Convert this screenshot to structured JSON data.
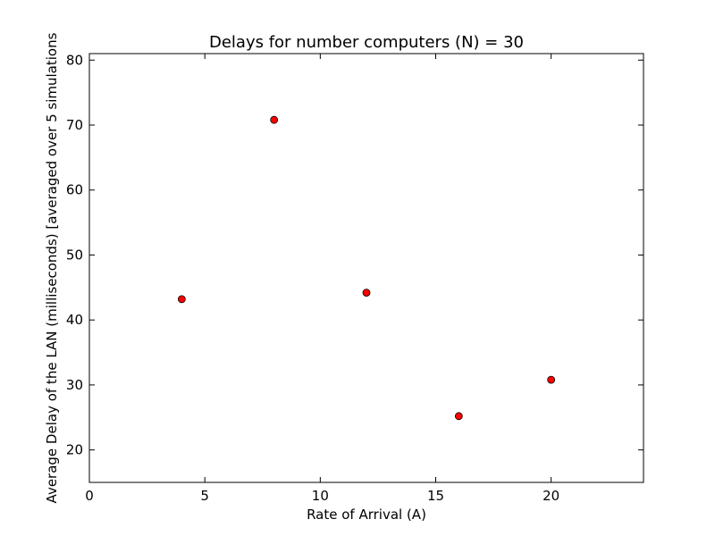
{
  "chart_data": {
    "type": "scatter",
    "title": "Delays for number computers (N) = 30",
    "xlabel": "Rate of Arrival (A)",
    "ylabel": "Average Delay of the LAN (milliseconds) [averaged over 5 simulations",
    "xlim": [
      0,
      24
    ],
    "ylim": [
      15,
      81
    ],
    "xticks": [
      0,
      5,
      10,
      15,
      20
    ],
    "yticks": [
      20,
      30,
      40,
      50,
      60,
      70,
      80
    ],
    "grid": false,
    "legend": "none",
    "marker_color": "#ff0000",
    "points": [
      {
        "x": 4,
        "y": 43.2
      },
      {
        "x": 8,
        "y": 70.8
      },
      {
        "x": 12,
        "y": 44.2
      },
      {
        "x": 16,
        "y": 25.2
      },
      {
        "x": 20,
        "y": 30.8
      }
    ]
  }
}
